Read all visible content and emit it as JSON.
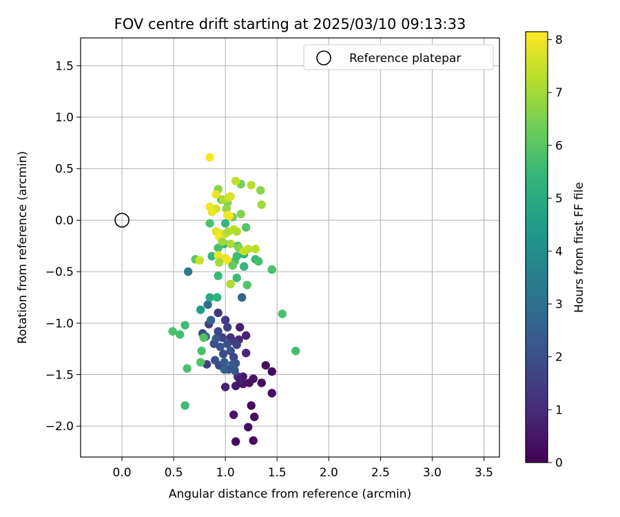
{
  "chart_data": {
    "type": "scatter",
    "title": "FOV centre drift starting at 2025/03/10 09:13:33",
    "xlabel": "Angular distance from reference (arcmin)",
    "ylabel": "Rotation from reference (arcmin)",
    "xlim": [
      -0.4,
      3.65
    ],
    "ylim": [
      -2.3,
      1.77
    ],
    "xticks": [
      0.0,
      0.5,
      1.0,
      1.5,
      2.0,
      2.5,
      3.0,
      3.5
    ],
    "xtick_labels": [
      "0.0",
      "0.5",
      "1.0",
      "1.5",
      "2.0",
      "2.5",
      "3.0",
      "3.5"
    ],
    "yticks": [
      1.5,
      1.0,
      0.5,
      0.0,
      -0.5,
      -1.0,
      -1.5,
      -2.0
    ],
    "ytick_labels": [
      "1.5",
      "1.0",
      "0.5",
      "0.0",
      "−0.5",
      "−1.0",
      "−1.5",
      "−2.0"
    ],
    "grid": true,
    "legend": {
      "placement": "top-right",
      "label": "Reference platepar"
    },
    "reference": {
      "x": 0.0,
      "y": 0.0
    },
    "colorbar": {
      "label": "Hours from first FF file",
      "range": [
        0,
        8.15
      ],
      "ticks": [
        0,
        1,
        2,
        3,
        4,
        5,
        6,
        7,
        8
      ],
      "tick_labels": [
        "0",
        "1",
        "2",
        "3",
        "4",
        "5",
        "6",
        "7",
        "8"
      ],
      "colormap": "viridis",
      "colors": [
        "#440154",
        "#482878",
        "#3e4989",
        "#31688e",
        "#26828e",
        "#1f9e89",
        "#35b779",
        "#6ece58",
        "#b5de2b",
        "#fde725"
      ]
    },
    "points": [
      {
        "x": 1.1,
        "y": -2.15,
        "t": 0.2
      },
      {
        "x": 1.27,
        "y": -2.14,
        "t": 0.3
      },
      {
        "x": 1.22,
        "y": -2.01,
        "t": 0.3
      },
      {
        "x": 1.28,
        "y": -1.91,
        "t": 0.4
      },
      {
        "x": 1.08,
        "y": -1.89,
        "t": 0.5
      },
      {
        "x": 1.25,
        "y": -1.8,
        "t": 0.3
      },
      {
        "x": 1.45,
        "y": -1.68,
        "t": 0.3
      },
      {
        "x": 1.0,
        "y": -1.62,
        "t": 0.8
      },
      {
        "x": 1.1,
        "y": -1.61,
        "t": 0.6
      },
      {
        "x": 1.17,
        "y": -1.59,
        "t": 0.5
      },
      {
        "x": 1.23,
        "y": -1.58,
        "t": 0.4
      },
      {
        "x": 1.35,
        "y": -1.58,
        "t": 0.3
      },
      {
        "x": 1.27,
        "y": -1.54,
        "t": 0.4
      },
      {
        "x": 1.17,
        "y": -1.52,
        "t": 0.5
      },
      {
        "x": 1.45,
        "y": -1.47,
        "t": 0.2
      },
      {
        "x": 1.39,
        "y": -1.41,
        "t": 0.3
      },
      {
        "x": 1.12,
        "y": -1.52,
        "t": 1.0
      },
      {
        "x": 1.14,
        "y": -1.55,
        "t": 0.7
      },
      {
        "x": 1.2,
        "y": -1.12,
        "t": 0.8
      },
      {
        "x": 1.2,
        "y": -1.29,
        "t": 0.9
      },
      {
        "x": 1.13,
        "y": -1.16,
        "t": 1.0
      },
      {
        "x": 1.14,
        "y": -1.04,
        "t": 0.7
      },
      {
        "x": 0.93,
        "y": -0.9,
        "t": 1.3
      },
      {
        "x": 0.84,
        "y": -1.01,
        "t": 1.5
      },
      {
        "x": 1.0,
        "y": -0.97,
        "t": 1.4
      },
      {
        "x": 1.02,
        "y": -1.04,
        "t": 1.6
      },
      {
        "x": 0.93,
        "y": -1.08,
        "t": 1.8
      },
      {
        "x": 0.97,
        "y": -1.14,
        "t": 1.5
      },
      {
        "x": 1.05,
        "y": -1.14,
        "t": 1.2
      },
      {
        "x": 1.09,
        "y": -1.18,
        "t": 1.3
      },
      {
        "x": 1.11,
        "y": -1.21,
        "t": 1.6
      },
      {
        "x": 1.02,
        "y": -1.2,
        "t": 2.0
      },
      {
        "x": 0.95,
        "y": -1.23,
        "t": 2.2
      },
      {
        "x": 0.89,
        "y": -1.2,
        "t": 1.9
      },
      {
        "x": 0.78,
        "y": -1.1,
        "t": 1.9
      },
      {
        "x": 0.91,
        "y": -1.15,
        "t": 2.3
      },
      {
        "x": 1.05,
        "y": -1.27,
        "t": 2.1
      },
      {
        "x": 0.98,
        "y": -1.3,
        "t": 1.9
      },
      {
        "x": 1.08,
        "y": -1.33,
        "t": 1.7
      },
      {
        "x": 0.9,
        "y": -1.36,
        "t": 2.1
      },
      {
        "x": 0.94,
        "y": -1.41,
        "t": 1.8
      },
      {
        "x": 0.99,
        "y": -1.38,
        "t": 2.4
      },
      {
        "x": 1.07,
        "y": -1.4,
        "t": 2.4
      },
      {
        "x": 1.1,
        "y": -1.39,
        "t": 2.2
      },
      {
        "x": 1.03,
        "y": -1.45,
        "t": 2.0
      },
      {
        "x": 0.99,
        "y": -1.45,
        "t": 2.5
      },
      {
        "x": 1.09,
        "y": -1.46,
        "t": 2.2
      },
      {
        "x": 0.82,
        "y": -1.4,
        "t": 1.5
      },
      {
        "x": 0.81,
        "y": -1.13,
        "t": 2.6
      },
      {
        "x": 0.86,
        "y": -0.97,
        "t": 2.7
      },
      {
        "x": 0.83,
        "y": -0.82,
        "t": 2.9
      },
      {
        "x": 1.16,
        "y": -0.75,
        "t": 2.6
      },
      {
        "x": 0.64,
        "y": -0.5,
        "t": 3.3
      },
      {
        "x": 0.76,
        "y": -0.87,
        "t": 4.5
      },
      {
        "x": 0.85,
        "y": -0.75,
        "t": 5.0
      },
      {
        "x": 0.92,
        "y": -0.75,
        "t": 5.2
      },
      {
        "x": 0.61,
        "y": -1.02,
        "t": 5.6
      },
      {
        "x": 0.49,
        "y": -1.08,
        "t": 5.8
      },
      {
        "x": 0.56,
        "y": -1.11,
        "t": 5.7
      },
      {
        "x": 0.79,
        "y": -1.14,
        "t": 5.9
      },
      {
        "x": 0.77,
        "y": -1.27,
        "t": 5.8
      },
      {
        "x": 0.76,
        "y": -1.38,
        "t": 5.9
      },
      {
        "x": 0.63,
        "y": -1.44,
        "t": 5.8
      },
      {
        "x": 0.61,
        "y": -1.8,
        "t": 5.6
      },
      {
        "x": 1.55,
        "y": -0.91,
        "t": 5.8
      },
      {
        "x": 1.68,
        "y": -1.27,
        "t": 5.7
      },
      {
        "x": 1.45,
        "y": -0.48,
        "t": 5.8
      },
      {
        "x": 1.21,
        "y": -0.63,
        "t": 5.9
      },
      {
        "x": 1.11,
        "y": -0.56,
        "t": 5.6
      },
      {
        "x": 0.93,
        "y": -0.54,
        "t": 5.5
      },
      {
        "x": 0.71,
        "y": -0.38,
        "t": 6.0
      },
      {
        "x": 0.87,
        "y": -0.35,
        "t": 5.4
      },
      {
        "x": 0.93,
        "y": -0.27,
        "t": 5.7
      },
      {
        "x": 0.99,
        "y": -0.23,
        "t": 5.2
      },
      {
        "x": 1.09,
        "y": -0.4,
        "t": 5.9
      },
      {
        "x": 1.11,
        "y": -0.35,
        "t": 5.6
      },
      {
        "x": 1.18,
        "y": -0.33,
        "t": 5.3
      },
      {
        "x": 1.18,
        "y": -0.45,
        "t": 5.4
      },
      {
        "x": 1.29,
        "y": -0.38,
        "t": 5.5
      },
      {
        "x": 1.32,
        "y": -0.4,
        "t": 5.7
      },
      {
        "x": 1.12,
        "y": -0.25,
        "t": 5.8
      },
      {
        "x": 1.2,
        "y": -0.07,
        "t": 5.9
      },
      {
        "x": 0.85,
        "y": -0.03,
        "t": 5.8
      },
      {
        "x": 1.0,
        "y": -0.03,
        "t": 5.4
      },
      {
        "x": 0.96,
        "y": 0.2,
        "t": 6.0
      },
      {
        "x": 1.02,
        "y": 0.17,
        "t": 6.5
      },
      {
        "x": 1.07,
        "y": 0.03,
        "t": 6.3
      },
      {
        "x": 1.15,
        "y": 0.06,
        "t": 6.6
      },
      {
        "x": 0.93,
        "y": 0.3,
        "t": 6.7
      },
      {
        "x": 1.15,
        "y": 0.35,
        "t": 6.4
      },
      {
        "x": 1.34,
        "y": 0.29,
        "t": 6.7
      },
      {
        "x": 1.35,
        "y": 0.15,
        "t": 7.0
      },
      {
        "x": 1.1,
        "y": 0.38,
        "t": 7.4
      },
      {
        "x": 1.25,
        "y": 0.34,
        "t": 7.3
      },
      {
        "x": 0.85,
        "y": 0.61,
        "t": 8.1
      },
      {
        "x": 0.91,
        "y": 0.25,
        "t": 7.9
      },
      {
        "x": 0.98,
        "y": 0.2,
        "t": 7.2
      },
      {
        "x": 1.03,
        "y": 0.22,
        "t": 7.5
      },
      {
        "x": 1.05,
        "y": 0.23,
        "t": 7.7
      },
      {
        "x": 0.85,
        "y": 0.13,
        "t": 8.0
      },
      {
        "x": 0.91,
        "y": 0.11,
        "t": 7.6
      },
      {
        "x": 0.87,
        "y": 0.08,
        "t": 7.9
      },
      {
        "x": 1.01,
        "y": 0.11,
        "t": 6.8
      },
      {
        "x": 1.02,
        "y": 0.05,
        "t": 7.9
      },
      {
        "x": 1.04,
        "y": 0.04,
        "t": 8.0
      },
      {
        "x": 0.91,
        "y": -0.11,
        "t": 7.8
      },
      {
        "x": 0.95,
        "y": -0.13,
        "t": 7.9
      },
      {
        "x": 0.94,
        "y": -0.16,
        "t": 8.1
      },
      {
        "x": 1.0,
        "y": -0.13,
        "t": 7.5
      },
      {
        "x": 1.03,
        "y": -0.11,
        "t": 7.1
      },
      {
        "x": 1.08,
        "y": -0.09,
        "t": 7.3
      },
      {
        "x": 1.11,
        "y": -0.11,
        "t": 7.2
      },
      {
        "x": 0.97,
        "y": -0.21,
        "t": 6.9
      },
      {
        "x": 1.05,
        "y": -0.23,
        "t": 7.1
      },
      {
        "x": 1.13,
        "y": -0.27,
        "t": 6.6
      },
      {
        "x": 1.18,
        "y": -0.3,
        "t": 7.5
      },
      {
        "x": 1.22,
        "y": -0.28,
        "t": 7.4
      },
      {
        "x": 1.29,
        "y": -0.28,
        "t": 7.3
      },
      {
        "x": 0.93,
        "y": -0.34,
        "t": 7.9
      },
      {
        "x": 1.0,
        "y": -0.37,
        "t": 7.8
      },
      {
        "x": 1.02,
        "y": -0.39,
        "t": 8.0
      },
      {
        "x": 0.94,
        "y": -0.41,
        "t": 7.0
      },
      {
        "x": 0.75,
        "y": -0.39,
        "t": 7.5
      },
      {
        "x": 1.05,
        "y": -0.62,
        "t": 7.2
      },
      {
        "x": 1.07,
        "y": -0.44,
        "t": 6.2
      }
    ]
  }
}
